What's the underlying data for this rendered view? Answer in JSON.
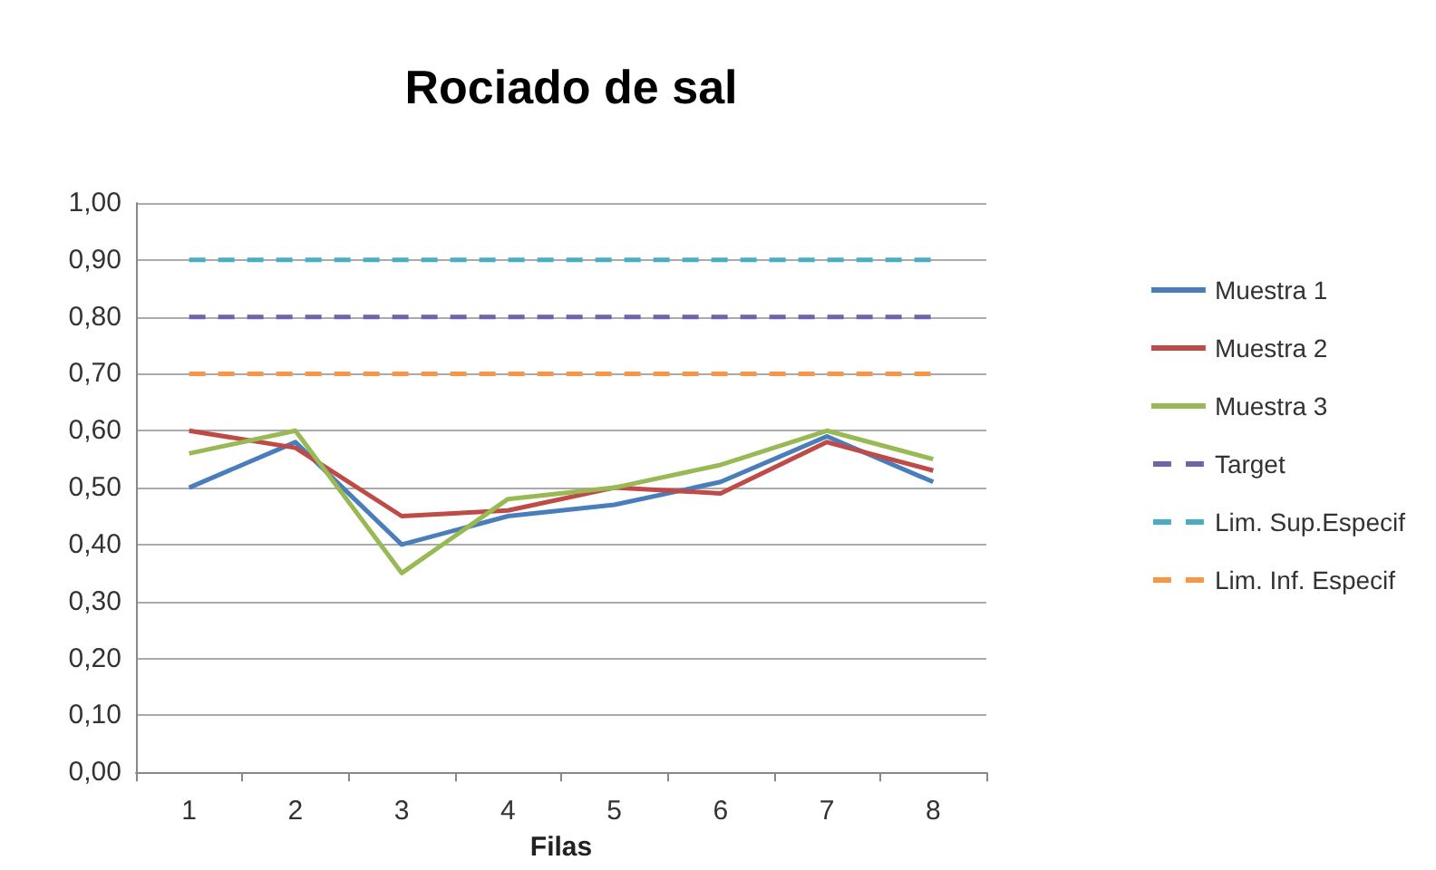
{
  "chart_data": {
    "type": "line",
    "title": "Rociado de sal",
    "xlabel": "Filas",
    "categories": [
      "1",
      "2",
      "3",
      "4",
      "5",
      "6",
      "7",
      "8"
    ],
    "series": [
      {
        "name": "Muestra 1",
        "color": "#4a7ebb",
        "values": [
          0.5,
          0.58,
          0.4,
          0.45,
          0.47,
          0.51,
          0.59,
          0.51
        ]
      },
      {
        "name": "Muestra 2",
        "color": "#be4b48",
        "values": [
          0.6,
          0.57,
          0.45,
          0.46,
          0.5,
          0.49,
          0.58,
          0.53
        ]
      },
      {
        "name": "Muestra 3",
        "color": "#98b954",
        "values": [
          0.56,
          0.6,
          0.35,
          0.48,
          0.5,
          0.54,
          0.6,
          0.55
        ]
      },
      {
        "name": "Target",
        "color": "#6e64ad",
        "line_style": "dashed",
        "values": [
          0.8,
          0.8,
          0.8,
          0.8,
          0.8,
          0.8,
          0.8,
          0.8
        ]
      },
      {
        "name": "Lim. Sup.Especif",
        "color": "#4bacc6",
        "line_style": "dashed",
        "values": [
          0.9,
          0.9,
          0.9,
          0.9,
          0.9,
          0.9,
          0.9,
          0.9
        ]
      },
      {
        "name": "Lim. Inf. Especif",
        "color": "#f79646",
        "line_style": "dashed",
        "values": [
          0.7,
          0.7,
          0.7,
          0.7,
          0.7,
          0.7,
          0.7,
          0.7
        ]
      }
    ],
    "ylim": [
      0,
      1
    ],
    "yticks": [
      {
        "value": 0,
        "label": "0,00"
      },
      {
        "value": 0.1,
        "label": "0,10"
      },
      {
        "value": 0.2,
        "label": "0,20"
      },
      {
        "value": 0.3,
        "label": "0,30"
      },
      {
        "value": 0.4,
        "label": "0,40"
      },
      {
        "value": 0.5,
        "label": "0,50"
      },
      {
        "value": 0.6,
        "label": "0,60"
      },
      {
        "value": 0.7,
        "label": "0,70"
      },
      {
        "value": 0.8,
        "label": "0,80"
      },
      {
        "value": 0.9,
        "label": "0,90"
      },
      {
        "value": 1,
        "label": "1,00"
      }
    ],
    "grid": "y",
    "legend": "right",
    "marker": "none",
    "line_style": "solid"
  }
}
